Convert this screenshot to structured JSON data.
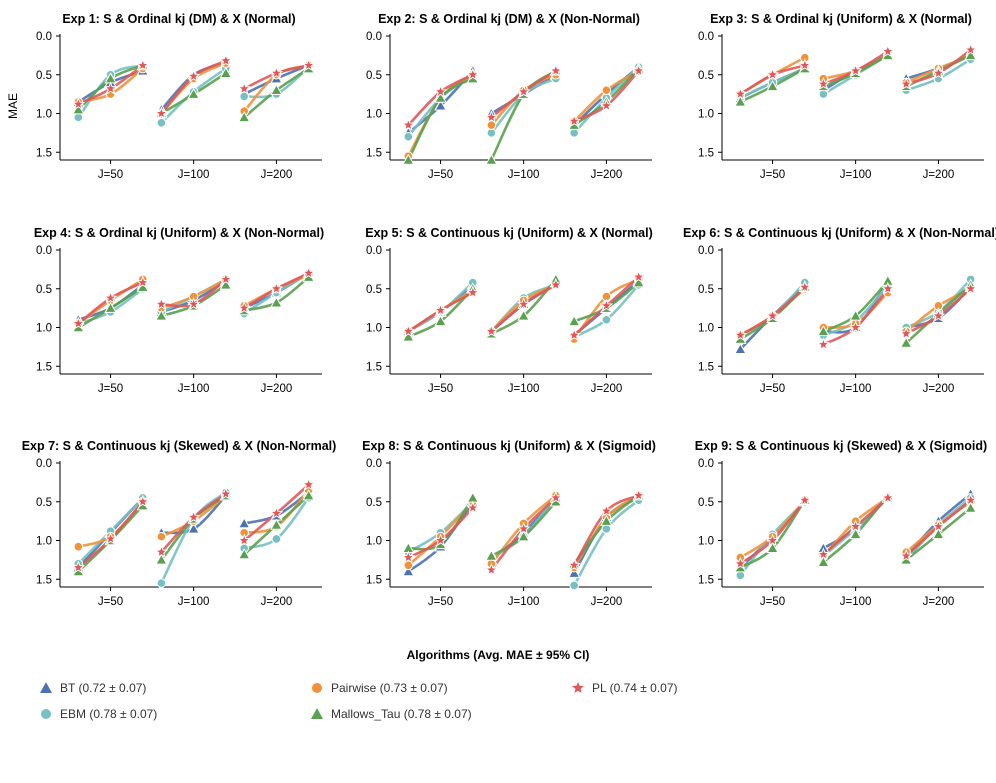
{
  "colors": {
    "BT": "#4c72b0",
    "EBM": "#76c0c1",
    "Pairwise": "#f0923a",
    "Mallows_Tau": "#59a14f",
    "PL": "#e15759"
  },
  "chart_data": {
    "type": "line",
    "ylabel": "MAE",
    "ylim": [
      1.6,
      0.0
    ],
    "yticks": [
      "0.0",
      "0.5",
      "1.0",
      "1.5"
    ],
    "groups": [
      "J=50",
      "J=100",
      "J=200"
    ],
    "x_slots": [
      "0.25",
      "0.5",
      "0.75"
    ],
    "legend": {
      "title": "Algorithms (Avg. MAE ± 95% CI)",
      "entries": [
        {
          "key": "BT",
          "label": "BT (0.72 ± 0.07)",
          "marker": "triangle"
        },
        {
          "key": "Pairwise",
          "label": "Pairwise (0.73 ± 0.07)",
          "marker": "circle"
        },
        {
          "key": "PL",
          "label": "PL (0.74 ± 0.07)",
          "marker": "star"
        },
        {
          "key": "EBM",
          "label": "EBM (0.78 ± 0.07)",
          "marker": "circle"
        },
        {
          "key": "Mallows_Tau",
          "label": "Mallows_Tau (0.78 ± 0.07)",
          "marker": "triangle"
        }
      ]
    },
    "panels": [
      {
        "title": "Exp 1: S & Ordinal kj (DM) & X (Normal)",
        "series": {
          "BT": [
            [
              0.85,
              0.6,
              0.45
            ],
            [
              0.95,
              0.5,
              0.35
            ],
            [
              0.75,
              0.55,
              0.38
            ]
          ],
          "EBM": [
            [
              1.05,
              0.5,
              0.38
            ],
            [
              1.12,
              0.72,
              0.42
            ],
            [
              0.78,
              0.75,
              0.4
            ]
          ],
          "Pairwise": [
            [
              0.85,
              0.75,
              0.42
            ],
            [
              1.0,
              0.55,
              0.35
            ],
            [
              0.97,
              0.5,
              0.38
            ]
          ],
          "Mallows_Tau": [
            [
              0.95,
              0.55,
              0.38
            ],
            [
              1.0,
              0.75,
              0.48
            ],
            [
              1.05,
              0.7,
              0.42
            ]
          ],
          "PL": [
            [
              0.88,
              0.68,
              0.38
            ],
            [
              1.0,
              0.52,
              0.32
            ],
            [
              0.68,
              0.48,
              0.38
            ]
          ]
        }
      },
      {
        "title": "Exp 2: S & Ordinal kj (DM) & X (Non-Normal)",
        "series": {
          "BT": [
            [
              1.25,
              0.9,
              0.45
            ],
            [
              1.0,
              0.75,
              0.5
            ],
            [
              1.15,
              0.75,
              0.4
            ]
          ],
          "EBM": [
            [
              1.3,
              0.8,
              0.5
            ],
            [
              1.25,
              0.75,
              0.55
            ],
            [
              1.25,
              0.8,
              0.4
            ]
          ],
          "Pairwise": [
            [
              1.55,
              0.8,
              0.5
            ],
            [
              1.15,
              0.7,
              0.5
            ],
            [
              1.1,
              0.7,
              0.45
            ]
          ],
          "Mallows_Tau": [
            [
              1.65,
              0.8,
              0.55
            ],
            [
              1.6,
              0.75,
              0.45
            ],
            [
              1.15,
              0.85,
              0.42
            ]
          ],
          "PL": [
            [
              1.15,
              0.72,
              0.5
            ],
            [
              1.05,
              0.72,
              0.45
            ],
            [
              1.1,
              0.9,
              0.45
            ]
          ]
        }
      },
      {
        "title": "Exp 3: S & Ordinal kj (Uniform) & X (Normal)",
        "series": {
          "BT": [
            [
              0.8,
              0.6,
              0.42
            ],
            [
              0.7,
              0.45,
              0.25
            ],
            [
              0.55,
              0.42,
              0.25
            ]
          ],
          "EBM": [
            [
              0.8,
              0.6,
              0.42
            ],
            [
              0.75,
              0.5,
              0.25
            ],
            [
              0.7,
              0.55,
              0.3
            ]
          ],
          "Pairwise": [
            [
              0.75,
              0.5,
              0.28
            ],
            [
              0.55,
              0.45,
              0.25
            ],
            [
              0.6,
              0.42,
              0.25
            ]
          ],
          "Mallows_Tau": [
            [
              0.85,
              0.65,
              0.42
            ],
            [
              0.65,
              0.48,
              0.25
            ],
            [
              0.65,
              0.45,
              0.25
            ]
          ],
          "PL": [
            [
              0.75,
              0.5,
              0.38
            ],
            [
              0.62,
              0.45,
              0.2
            ],
            [
              0.62,
              0.48,
              0.18
            ]
          ]
        }
      },
      {
        "title": "Exp 4: S & Ordinal kj (Uniform) & X (Non-Normal)",
        "series": {
          "BT": [
            [
              0.9,
              0.75,
              0.45
            ],
            [
              0.8,
              0.65,
              0.4
            ],
            [
              0.75,
              0.55,
              0.3
            ]
          ],
          "EBM": [
            [
              0.95,
              0.8,
              0.5
            ],
            [
              0.8,
              0.6,
              0.38
            ],
            [
              0.82,
              0.55,
              0.3
            ]
          ],
          "Pairwise": [
            [
              0.95,
              0.65,
              0.38
            ],
            [
              0.75,
              0.6,
              0.38
            ],
            [
              0.72,
              0.5,
              0.32
            ]
          ],
          "Mallows_Tau": [
            [
              1.0,
              0.75,
              0.48
            ],
            [
              0.85,
              0.72,
              0.45
            ],
            [
              0.78,
              0.68,
              0.35
            ]
          ],
          "PL": [
            [
              0.95,
              0.62,
              0.42
            ],
            [
              0.7,
              0.7,
              0.38
            ],
            [
              0.75,
              0.5,
              0.3
            ]
          ]
        }
      },
      {
        "title": "Exp 5: S & Continuous kj (Uniform) & X (Normal)",
        "series": {
          "BT": [
            [
              1.05,
              0.8,
              0.45
            ],
            [
              1.05,
              0.7,
              0.42
            ],
            [
              1.1,
              0.75,
              0.4
            ]
          ],
          "EBM": [
            [
              1.05,
              0.8,
              0.42
            ],
            [
              1.05,
              0.62,
              0.45
            ],
            [
              1.12,
              0.9,
              0.45
            ]
          ],
          "Pairwise": [
            [
              1.05,
              0.78,
              0.52
            ],
            [
              1.05,
              0.65,
              0.45
            ],
            [
              1.15,
              0.6,
              0.38
            ]
          ],
          "Mallows_Tau": [
            [
              1.12,
              0.92,
              0.5
            ],
            [
              1.08,
              0.85,
              0.38
            ],
            [
              0.92,
              0.75,
              0.42
            ]
          ],
          "PL": [
            [
              1.05,
              0.78,
              0.55
            ],
            [
              1.05,
              0.7,
              0.45
            ],
            [
              1.1,
              0.72,
              0.35
            ]
          ]
        }
      },
      {
        "title": "Exp 6: S & Continuous kj (Uniform) & X (Non-Normal)",
        "series": {
          "BT": [
            [
              1.28,
              0.85,
              0.45
            ],
            [
              1.05,
              1.0,
              0.4
            ],
            [
              1.0,
              0.88,
              0.48
            ]
          ],
          "EBM": [
            [
              1.1,
              0.85,
              0.42
            ],
            [
              1.1,
              0.92,
              0.45
            ],
            [
              1.0,
              0.8,
              0.38
            ]
          ],
          "Pairwise": [
            [
              1.1,
              0.85,
              0.5
            ],
            [
              1.0,
              0.95,
              0.55
            ],
            [
              1.05,
              0.72,
              0.5
            ]
          ],
          "Mallows_Tau": [
            [
              1.15,
              0.88,
              0.48
            ],
            [
              1.05,
              0.85,
              0.4
            ],
            [
              1.2,
              0.82,
              0.45
            ]
          ],
          "PL": [
            [
              1.1,
              0.85,
              0.48
            ],
            [
              1.22,
              1.0,
              0.5
            ],
            [
              1.08,
              0.85,
              0.5
            ]
          ]
        }
      },
      {
        "title": "Exp 7: S & Continuous kj (Skewed) & X (Non-Normal)",
        "series": {
          "BT": [
            [
              1.35,
              0.9,
              0.45
            ],
            [
              0.9,
              0.85,
              0.42
            ],
            [
              0.78,
              0.68,
              0.38
            ]
          ],
          "EBM": [
            [
              1.3,
              0.88,
              0.45
            ],
            [
              1.55,
              0.72,
              0.38
            ],
            [
              1.1,
              0.98,
              0.45
            ]
          ],
          "Pairwise": [
            [
              1.08,
              0.95,
              0.5
            ],
            [
              0.95,
              0.75,
              0.42
            ],
            [
              0.9,
              0.82,
              0.35
            ]
          ],
          "Mallows_Tau": [
            [
              1.4,
              1.0,
              0.55
            ],
            [
              1.25,
              0.72,
              0.42
            ],
            [
              1.18,
              0.8,
              0.42
            ]
          ],
          "PL": [
            [
              1.35,
              0.98,
              0.5
            ],
            [
              1.15,
              0.7,
              0.4
            ],
            [
              1.0,
              0.65,
              0.28
            ]
          ]
        }
      },
      {
        "title": "Exp 8: S & Continuous kj (Uniform) & X (Sigmoid)",
        "series": {
          "BT": [
            [
              1.4,
              1.08,
              0.5
            ],
            [
              1.25,
              0.9,
              0.45
            ],
            [
              1.42,
              0.7,
              0.45
            ]
          ],
          "EBM": [
            [
              1.15,
              0.9,
              0.5
            ],
            [
              1.22,
              0.95,
              0.42
            ],
            [
              1.58,
              0.85,
              0.48
            ]
          ],
          "Pairwise": [
            [
              1.32,
              0.95,
              0.5
            ],
            [
              1.3,
              0.78,
              0.42
            ],
            [
              1.35,
              0.7,
              0.42
            ]
          ],
          "Mallows_Tau": [
            [
              1.1,
              1.05,
              0.45
            ],
            [
              1.2,
              0.95,
              0.5
            ],
            [
              1.3,
              0.75,
              0.42
            ]
          ],
          "PL": [
            [
              1.22,
              1.0,
              0.58
            ],
            [
              1.38,
              0.85,
              0.45
            ],
            [
              1.32,
              0.62,
              0.42
            ]
          ]
        }
      },
      {
        "title": "Exp 9: S & Continuous kj (Skewed) & X (Sigmoid)",
        "series": {
          "BT": [
            [
              1.35,
              0.95,
              0.5
            ],
            [
              1.1,
              0.85,
              0.45
            ],
            [
              1.2,
              0.75,
              0.4
            ]
          ],
          "EBM": [
            [
              1.45,
              0.92,
              0.5
            ],
            [
              1.2,
              0.85,
              0.45
            ],
            [
              1.25,
              0.8,
              0.45
            ]
          ],
          "Pairwise": [
            [
              1.22,
              0.95,
              0.48
            ],
            [
              1.2,
              0.75,
              0.45
            ],
            [
              1.15,
              0.8,
              0.5
            ]
          ],
          "Mallows_Tau": [
            [
              1.35,
              1.1,
              0.48
            ],
            [
              1.28,
              0.92,
              0.42
            ],
            [
              1.25,
              0.92,
              0.58
            ]
          ],
          "PL": [
            [
              1.3,
              1.0,
              0.48
            ],
            [
              1.18,
              0.82,
              0.45
            ],
            [
              1.2,
              0.82,
              0.48
            ]
          ]
        }
      }
    ]
  }
}
